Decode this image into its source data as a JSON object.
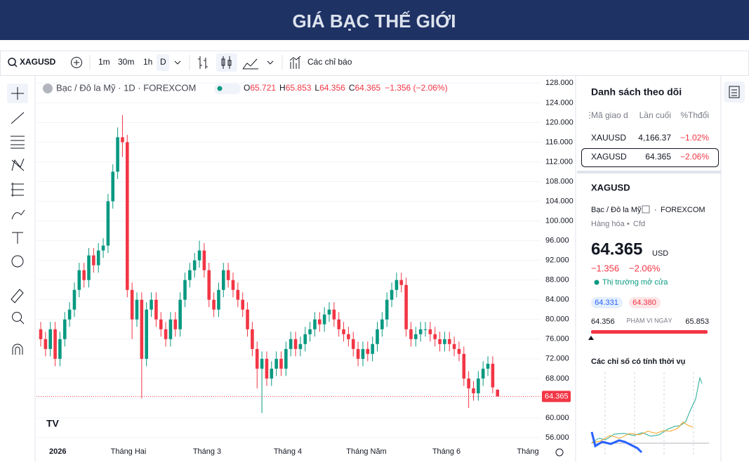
{
  "header": {
    "title": "GIÁ BẠC THẾ GIỚI"
  },
  "toolbar": {
    "symbol": "XAGUSD",
    "intervals": [
      "1m",
      "30m",
      "1h",
      "D"
    ],
    "indicators": "Các chỉ báo"
  },
  "chart_data": {
    "type": "candlestick",
    "description": "Bạc / Đô la Mỹ · 1D · FOREXCOM",
    "ohlc_legend": [
      {
        "label": "O",
        "value": 65.721
      },
      {
        "label": "H",
        "value": 65.853
      },
      {
        "label": "L",
        "value": 64.356
      },
      {
        "label": "C",
        "value": 64.365
      }
    ],
    "change_text": "−1.356 (−2.06%)",
    "up_color": "#089981",
    "down_color": "#f23645",
    "open": [
      78,
      76,
      74,
      78,
      72,
      76,
      80,
      82,
      86,
      90,
      88,
      93,
      91,
      94,
      95,
      104,
      110,
      117,
      116,
      86,
      80,
      84,
      72,
      82,
      84,
      80,
      78,
      76,
      80,
      78,
      84,
      88,
      90,
      92,
      94,
      90,
      84,
      82,
      86,
      90,
      88,
      86,
      84,
      82,
      78,
      74,
      70,
      72,
      68,
      70,
      72,
      70,
      74,
      76,
      74,
      75,
      77,
      78,
      80,
      79,
      81,
      82,
      80,
      78,
      77,
      76,
      74,
      72,
      74,
      73,
      75,
      78,
      80,
      84,
      86,
      88,
      87,
      78,
      76,
      77,
      78,
      78,
      77,
      76,
      75,
      76,
      75,
      74,
      73,
      68,
      66,
      65,
      68,
      70,
      71,
      65.721
    ],
    "high": [
      79.5,
      77.5,
      79.5,
      79.5,
      77.5,
      81.5,
      83.5,
      87.5,
      91.5,
      91.5,
      94.5,
      94.5,
      95.5,
      96.5,
      105.5,
      111.5,
      119,
      121.5,
      117.5,
      87.5,
      85.5,
      85.5,
      83.5,
      85.5,
      85.5,
      81.5,
      79.5,
      81.5,
      81.5,
      85.5,
      89.5,
      91.5,
      93.5,
      96,
      95.5,
      91.5,
      85.5,
      87.5,
      91.5,
      91.5,
      89.5,
      87.5,
      85.5,
      83.5,
      79.5,
      75.5,
      73.5,
      73.5,
      71.5,
      73.5,
      73.5,
      75.5,
      77.5,
      77.5,
      76.5,
      78.5,
      79.5,
      81.5,
      81.5,
      82.5,
      83.5,
      83.5,
      81.5,
      79.5,
      78.5,
      77.5,
      75.5,
      75.5,
      75.5,
      76.5,
      79.5,
      81.5,
      85.5,
      87.5,
      89.5,
      89.5,
      88.5,
      79.5,
      78.5,
      79.5,
      79.5,
      79.5,
      78.5,
      77.5,
      77.5,
      77.5,
      76.5,
      75.5,
      74.5,
      69.5,
      67.5,
      69.5,
      71.5,
      72.5,
      72.5,
      65.853
    ],
    "low": [
      74.5,
      72.5,
      72.5,
      70.5,
      70.5,
      74.5,
      78.5,
      80.5,
      84.5,
      86.5,
      86.5,
      89.5,
      89.5,
      92.5,
      93.5,
      102.5,
      108.5,
      113,
      84.5,
      76,
      78.5,
      64,
      70.5,
      80.5,
      78.5,
      76.5,
      74.5,
      74.5,
      76.5,
      76.5,
      82.5,
      86.5,
      88.5,
      90.5,
      88.5,
      82.5,
      80.5,
      80.5,
      84.5,
      86.5,
      84.5,
      82.5,
      80.5,
      76.5,
      72.5,
      66,
      61,
      66.5,
      66.5,
      68.5,
      68.5,
      68.5,
      72.5,
      72.5,
      72.5,
      73.5,
      75.5,
      76.5,
      77.5,
      77.5,
      79.5,
      78.5,
      76.5,
      75.5,
      74.5,
      72.5,
      70.5,
      70.5,
      71.5,
      71.5,
      73.5,
      76.5,
      78.5,
      82.5,
      84.5,
      85.5,
      76.5,
      74.5,
      74.5,
      75.5,
      76.5,
      75.5,
      74.5,
      73.5,
      73.5,
      73.5,
      72.5,
      71.5,
      66.5,
      62,
      63.5,
      63.5,
      66.5,
      68.5,
      65,
      64.356
    ],
    "close": [
      76,
      74,
      78,
      72,
      76,
      80,
      82,
      86,
      90,
      88,
      93,
      91,
      94,
      95,
      104,
      110,
      117,
      116,
      86,
      80,
      84,
      72,
      82,
      84,
      80,
      78,
      76,
      80,
      78,
      84,
      88,
      90,
      92,
      94,
      90,
      84,
      82,
      86,
      90,
      88,
      86,
      84,
      82,
      78,
      74,
      70,
      72,
      68,
      70,
      72,
      70,
      74,
      76,
      74,
      75,
      77,
      78,
      80,
      79,
      81,
      82,
      80,
      78,
      77,
      76,
      74,
      72,
      74,
      73,
      75,
      78,
      80,
      84,
      86,
      88,
      87,
      78,
      76,
      77,
      78,
      78,
      77,
      76,
      75,
      76,
      75,
      74,
      73,
      68,
      66,
      65,
      68,
      70,
      71,
      66.2,
      64.365
    ],
    "last_price": 64.365,
    "ylim": [
      55,
      128.9
    ],
    "yticks": [
      {
        "value": 56,
        "label": "56.000"
      },
      {
        "value": 60,
        "label": "60.000"
      },
      {
        "value": 64,
        "label": "64.000"
      },
      {
        "value": 68,
        "label": "68.000"
      },
      {
        "value": 72,
        "label": "72.000"
      },
      {
        "value": 76,
        "label": "76.000"
      },
      {
        "value": 80,
        "label": "80.000"
      },
      {
        "value": 84,
        "label": "84.000"
      },
      {
        "value": 88,
        "label": "88.000"
      },
      {
        "value": 92,
        "label": "92.000"
      },
      {
        "value": 96,
        "label": "96.000"
      },
      {
        "value": 100,
        "label": "100.000"
      },
      {
        "value": 104,
        "label": "104.000"
      },
      {
        "value": 108,
        "label": "108.000"
      },
      {
        "value": 112,
        "label": "112.000"
      },
      {
        "value": 116,
        "label": "116.000"
      },
      {
        "value": 120,
        "label": "120.000"
      },
      {
        "value": 124,
        "label": "124.000"
      },
      {
        "value": 128,
        "label": "128.000"
      }
    ],
    "xtick_labels": [
      "2026",
      "Tháng Hai",
      "Tháng 3",
      "Tháng 4",
      "Tháng Năm",
      "Tháng 6",
      "Tháng"
    ],
    "grid": true
  },
  "watchlist": {
    "title": "Danh sách theo dõi",
    "columns": [
      "Mã giao d",
      "Lần cuối",
      "%Thđổi"
    ],
    "rows": [
      [
        "XAUUSD",
        "4,166.37",
        "−1.02%"
      ],
      [
        "XAGUSD",
        "64.365",
        "−2.06%"
      ]
    ]
  },
  "details": {
    "symbol": "XAGUSD",
    "name": "Bạc / Đô la Mỹ",
    "exchange": "FOREXCOM",
    "category": "Hàng hóa",
    "kind": "Cfd",
    "price": "64.365",
    "currency": "USD",
    "change": "−1.356",
    "change_pct": "−2.06%",
    "status": "Thị trường mở cửa",
    "bid": "64.331",
    "ask": "64.380",
    "range_low": "64.356",
    "range_title": "PHẠM VI NGÀY",
    "range_high": "65.853",
    "seasonal_title": "Các chỉ số có tính thời vụ"
  }
}
